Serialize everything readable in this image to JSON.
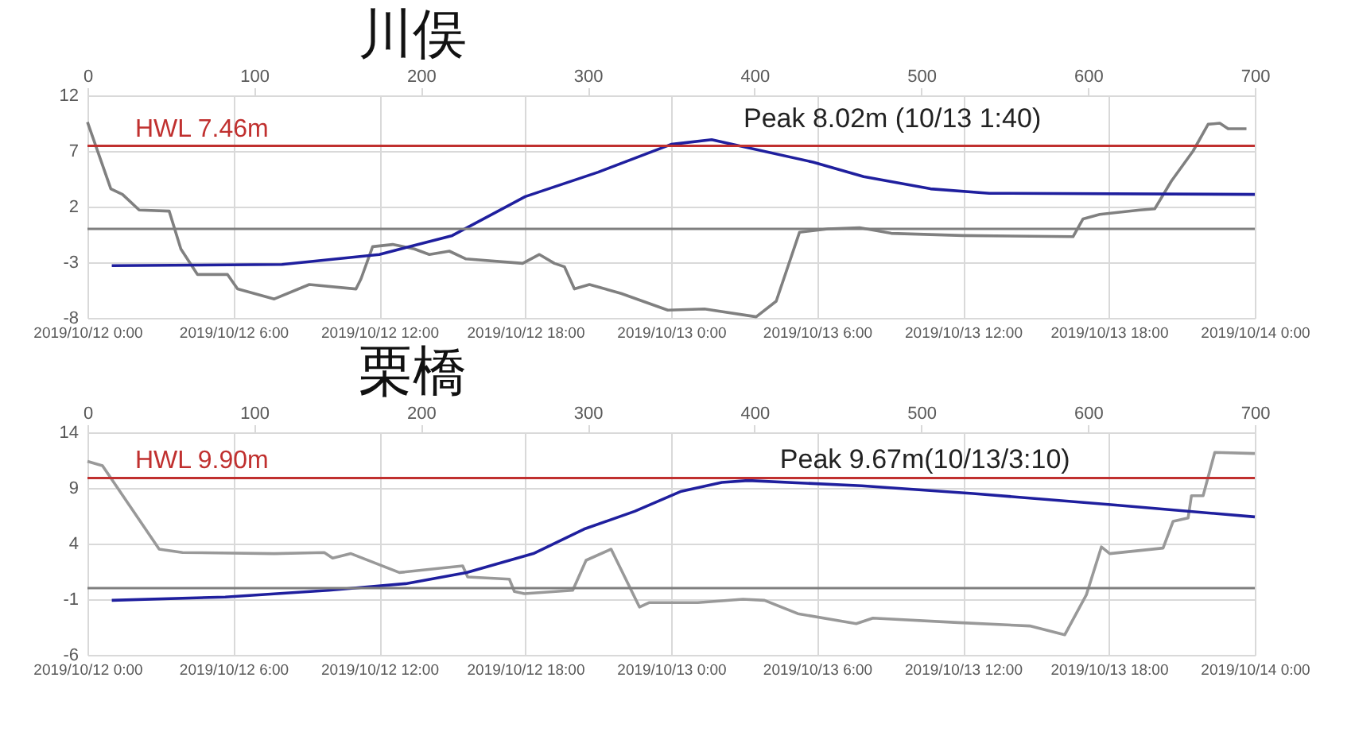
{
  "chart_data": [
    {
      "type": "line",
      "title": "川俣",
      "xlim": [
        "2019-10-12T00:00",
        "2019-10-14T00:00"
      ],
      "xticks": [
        {
          "value": "2019-10-12T00:00",
          "label": "2019/10/12 0:00"
        },
        {
          "value": "2019-10-12T06:00",
          "label": "2019/10/12 6:00"
        },
        {
          "value": "2019-10-12T12:00",
          "label": "2019/10/12 12:00"
        },
        {
          "value": "2019-10-12T18:00",
          "label": "2019/10/12 18:00"
        },
        {
          "value": "2019-10-13T00:00",
          "label": "2019/10/13 0:00"
        },
        {
          "value": "2019-10-13T06:00",
          "label": "2019/10/13 6:00"
        },
        {
          "value": "2019-10-13T12:00",
          "label": "2019/10/13 12:00"
        },
        {
          "value": "2019-10-13T18:00",
          "label": "2019/10/13 18:00"
        },
        {
          "value": "2019-10-14T00:00",
          "label": "2019/10/14 0:00"
        }
      ],
      "x2lim": [
        0,
        700
      ],
      "x2ticks": [
        0,
        100,
        200,
        300,
        400,
        500,
        600,
        700
      ],
      "ylim": [
        -8,
        12
      ],
      "yticks": [
        -8,
        -3,
        2,
        7,
        12
      ],
      "grid": true,
      "series": [
        {
          "color": "#808080",
          "axis": "x2",
          "x": [
            0,
            14,
            21,
            31,
            49,
            56,
            66,
            84,
            90,
            112,
            133,
            161,
            164,
            171,
            183,
            196,
            205,
            217,
            227,
            261,
            271,
            280,
            286,
            292,
            301,
            320,
            348,
            370,
            401,
            413,
            427,
            444,
            463,
            482,
            525,
            591,
            597,
            607,
            631,
            640,
            650,
            663,
            672,
            679,
            684,
            695
          ],
          "values": [
            9.6,
            3.6,
            3.1,
            1.7,
            1.6,
            -1.8,
            -4.1,
            -4.1,
            -5.4,
            -6.3,
            -5.0,
            -5.4,
            -4.5,
            -1.6,
            -1.4,
            -1.8,
            -2.3,
            -2.0,
            -2.7,
            -3.1,
            -2.3,
            -3.1,
            -3.4,
            -5.4,
            -5.0,
            -5.8,
            -7.3,
            -7.2,
            -7.9,
            -6.5,
            -0.3,
            0,
            0.1,
            -0.4,
            -0.6,
            -0.7,
            0.9,
            1.3,
            1.7,
            1.8,
            4.3,
            7.0,
            9.4,
            9.5,
            9.0,
            9.0
          ]
        },
        {
          "color": "#1f1f9e",
          "x": [
            "2019-10-12T01:00",
            "2019-10-12T08:00",
            "2019-10-12T12:00",
            "2019-10-12T15:00",
            "2019-10-12T18:00",
            "2019-10-12T21:00",
            "2019-10-13T00:00",
            "2019-10-13T01:40",
            "2019-10-13T05:50",
            "2019-10-13T07:55",
            "2019-10-13T10:40",
            "2019-10-13T13:05",
            "2019-10-14T00:00"
          ],
          "values": [
            -3.3,
            -3.2,
            -2.3,
            -0.6,
            2.9,
            5.1,
            7.6,
            8.02,
            6.0,
            4.7,
            3.6,
            3.2,
            3.1
          ]
        }
      ],
      "ref_lines": [
        {
          "axis": "y",
          "value": 7.46,
          "label": "HWL 7.46m",
          "color": "#c0302f"
        },
        {
          "axis": "y",
          "value": 0,
          "color": "#7f7f7f"
        }
      ],
      "annotations": [
        {
          "text": "Peak 8.02m (10/13 1:40)",
          "x": "2019-10-13T01:40",
          "y": 8.02
        }
      ]
    },
    {
      "type": "line",
      "title": "栗橋",
      "xlim": [
        "2019-10-12T00:00",
        "2019-10-14T00:00"
      ],
      "xticks": [
        {
          "value": "2019-10-12T00:00",
          "label": "2019/10/12 0:00"
        },
        {
          "value": "2019-10-12T06:00",
          "label": "2019/10/12 6:00"
        },
        {
          "value": "2019-10-12T12:00",
          "label": "2019/10/12 12:00"
        },
        {
          "value": "2019-10-12T18:00",
          "label": "2019/10/12 18:00"
        },
        {
          "value": "2019-10-13T00:00",
          "label": "2019/10/13 0:00"
        },
        {
          "value": "2019-10-13T06:00",
          "label": "2019/10/13 6:00"
        },
        {
          "value": "2019-10-13T12:00",
          "label": "2019/10/13 12:00"
        },
        {
          "value": "2019-10-13T18:00",
          "label": "2019/10/13 18:00"
        },
        {
          "value": "2019-10-14T00:00",
          "label": "2019/10/14 0:00"
        }
      ],
      "x2lim": [
        0,
        700
      ],
      "x2ticks": [
        0,
        100,
        200,
        300,
        400,
        500,
        600,
        700
      ],
      "ylim": [
        -6,
        14
      ],
      "yticks": [
        -6,
        -1,
        4,
        9,
        14
      ],
      "grid": true,
      "series": [
        {
          "color": "#999999",
          "axis": "x2",
          "x": [
            0,
            9,
            43,
            57,
            112,
            142,
            147,
            158,
            187,
            225,
            228,
            253,
            256,
            262,
            291,
            299,
            314,
            331,
            337,
            354,
            366,
            393,
            406,
            426,
            461,
            471,
            522,
            565,
            586,
            599,
            608,
            613,
            645,
            651,
            660,
            662,
            669,
            676,
            700
          ],
          "values": [
            11.4,
            11.0,
            3.5,
            3.2,
            3.1,
            3.2,
            2.7,
            3.1,
            1.4,
            2.0,
            1.0,
            0.8,
            -0.3,
            -0.5,
            -0.2,
            2.5,
            3.5,
            -1.7,
            -1.3,
            -1.3,
            -1.3,
            -1.0,
            -1.1,
            -2.3,
            -3.2,
            -2.7,
            -3.1,
            -3.4,
            -4.2,
            -0.6,
            3.7,
            3.1,
            3.6,
            6.0,
            6.3,
            8.3,
            8.3,
            12.2,
            12.1
          ]
        },
        {
          "color": "#1f1f9e",
          "x": [
            "2019-10-12T01:00",
            "2019-10-12T05:40",
            "2019-10-12T09:55",
            "2019-10-12T13:05",
            "2019-10-12T15:35",
            "2019-10-12T18:20",
            "2019-10-12T20:25",
            "2019-10-12T22:30",
            "2019-10-13T00:25",
            "2019-10-13T02:05",
            "2019-10-13T03:10",
            "2019-10-13T07:50",
            "2019-10-13T12:25",
            "2019-10-13T18:05",
            "2019-10-14T00:00"
          ],
          "values": [
            -1.1,
            -0.8,
            -0.2,
            0.4,
            1.4,
            3.1,
            5.3,
            6.9,
            8.7,
            9.5,
            9.67,
            9.2,
            8.5,
            7.5,
            6.4
          ]
        }
      ],
      "ref_lines": [
        {
          "axis": "y",
          "value": 9.9,
          "label": "HWL 9.90m",
          "color": "#c0302f"
        },
        {
          "axis": "y",
          "value": 0,
          "color": "#7f7f7f"
        }
      ],
      "annotations": [
        {
          "text": "Peak 9.67m(10/13/3:10)",
          "x": "2019-10-13T03:10",
          "y": 9.67
        }
      ]
    }
  ]
}
